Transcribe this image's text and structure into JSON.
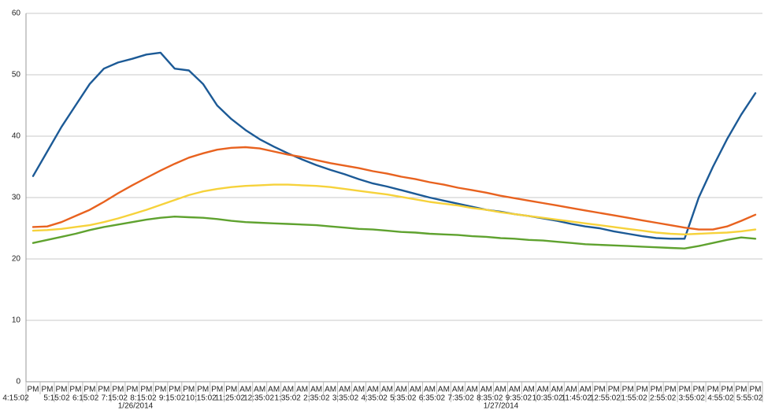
{
  "chart_data": {
    "type": "line",
    "categories": [
      "PM",
      "PM",
      "PM",
      "PM",
      "PM",
      "PM",
      "PM",
      "PM",
      "PM",
      "PM",
      "PM",
      "PM",
      "PM",
      "PM",
      "PM",
      "AM",
      "AM",
      "AM",
      "AM",
      "AM",
      "AM",
      "AM",
      "AM",
      "AM",
      "AM",
      "AM",
      "AM",
      "AM",
      "AM",
      "AM",
      "AM",
      "AM",
      "AM",
      "AM",
      "AM",
      "AM",
      "AM",
      "AM",
      "AM",
      "AM",
      "PM",
      "PM",
      "PM",
      "PM",
      "PM",
      "PM",
      "PM",
      "PM",
      "PM",
      "PM",
      "PM",
      "PM"
    ],
    "time_labels": [
      "4:15:02",
      "5:15:02",
      "6:15:02",
      "7:15:02",
      "8:15:02",
      "9:15:02",
      "10:15:02",
      "11:25:02",
      "12:35:02",
      "1:35:02",
      "2:35:02",
      "3:35:02",
      "4:35:02",
      "5:35:02",
      "6:35:02",
      "7:35:02",
      "8:35:02",
      "9:35:02",
      "10:35:02",
      "11:45:02",
      "12:55:02",
      "1:55:02",
      "2:55:02",
      "3:55:02",
      "4:55:02",
      "5:55:02"
    ],
    "date_labels": [
      "1/26/2014",
      "1/27/2014"
    ],
    "ylim": [
      0,
      60
    ],
    "yticks": [
      0,
      10,
      20,
      30,
      40,
      50,
      60
    ],
    "grid": true,
    "series": [
      {
        "color": "#1c5a96",
        "values": [
          33.5,
          37.5,
          41.5,
          45,
          48.5,
          51,
          52,
          52.6,
          53.3,
          53.6,
          51,
          50.7,
          48.5,
          45,
          42.8,
          41,
          39.5,
          38.3,
          37.2,
          36.2,
          35.3,
          34.5,
          33.8,
          33,
          32.3,
          31.8,
          31.2,
          30.6,
          30,
          29.5,
          29,
          28.5,
          28,
          27.7,
          27.3,
          27,
          26.6,
          26.2,
          25.7,
          25.3,
          25,
          24.5,
          24.1,
          23.7,
          23.4,
          23.3,
          23.3,
          30,
          35,
          39.5,
          43.5,
          47
        ]
      },
      {
        "color": "#e8621f",
        "values": [
          25.2,
          25.3,
          26,
          27,
          28,
          29.3,
          30.7,
          32,
          33.2,
          34.4,
          35.5,
          36.5,
          37.2,
          37.8,
          38.1,
          38.2,
          38,
          37.5,
          37,
          36.6,
          36.1,
          35.6,
          35.2,
          34.8,
          34.3,
          33.9,
          33.4,
          33,
          32.5,
          32.1,
          31.6,
          31.2,
          30.8,
          30.3,
          29.9,
          29.5,
          29.1,
          28.7,
          28.3,
          27.9,
          27.5,
          27.1,
          26.7,
          26.3,
          25.9,
          25.5,
          25.1,
          24.8,
          24.8,
          25.3,
          26.2,
          27.2
        ]
      },
      {
        "color": "#f6d23b",
        "values": [
          24.6,
          24.7,
          24.9,
          25.2,
          25.5,
          26,
          26.6,
          27.3,
          28,
          28.8,
          29.6,
          30.4,
          31,
          31.4,
          31.7,
          31.9,
          32,
          32.1,
          32.1,
          32,
          31.9,
          31.7,
          31.4,
          31.1,
          30.8,
          30.5,
          30.1,
          29.7,
          29.3,
          29,
          28.7,
          28.3,
          28,
          27.6,
          27.3,
          27,
          26.7,
          26.4,
          26.1,
          25.8,
          25.5,
          25.2,
          24.9,
          24.6,
          24.3,
          24.1,
          24,
          24.1,
          24.2,
          24.3,
          24.5,
          24.8
        ]
      },
      {
        "color": "#5fa22f",
        "values": [
          22.6,
          23.1,
          23.6,
          24.1,
          24.7,
          25.2,
          25.6,
          26,
          26.4,
          26.7,
          26.9,
          26.8,
          26.7,
          26.5,
          26.2,
          26,
          25.9,
          25.8,
          25.7,
          25.6,
          25.5,
          25.3,
          25.1,
          24.9,
          24.8,
          24.6,
          24.4,
          24.3,
          24.1,
          24,
          23.9,
          23.7,
          23.6,
          23.4,
          23.3,
          23.1,
          23,
          22.8,
          22.6,
          22.4,
          22.3,
          22.2,
          22.1,
          22,
          21.9,
          21.8,
          21.7,
          22.1,
          22.6,
          23.1,
          23.5,
          23.3
        ]
      }
    ]
  }
}
